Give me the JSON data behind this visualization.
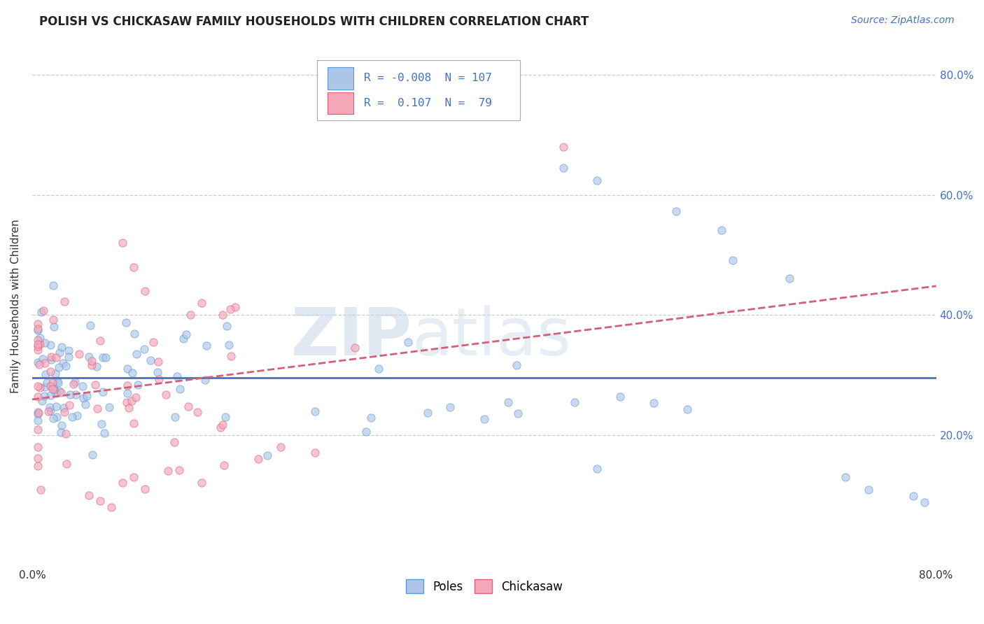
{
  "title": "POLISH VS CHICKASAW FAMILY HOUSEHOLDS WITH CHILDREN CORRELATION CHART",
  "source": "Source: ZipAtlas.com",
  "ylabel": "Family Households with Children",
  "xlim": [
    0.0,
    0.8
  ],
  "ylim": [
    -0.02,
    0.85
  ],
  "ytick_positions": [
    0.2,
    0.4,
    0.6,
    0.8
  ],
  "ytick_labels": [
    "20.0%",
    "40.0%",
    "60.0%",
    "80.0%"
  ],
  "poles_color": "#adc6e8",
  "poles_edge_color": "#5b9bd5",
  "chickasaw_color": "#f4a7b9",
  "chickasaw_edge_color": "#e0607a",
  "trend_poles_color": "#4472c4",
  "trend_chickasaw_color": "#d45f7a",
  "legend_R_poles": "-0.008",
  "legend_N_poles": "107",
  "legend_R_chickasaw": "0.107",
  "legend_N_chickasaw": "79",
  "watermark_zip": "ZIP",
  "watermark_atlas": "atlas",
  "background_color": "#ffffff",
  "grid_color": "#cccccc",
  "title_fontsize": 12,
  "axis_label_fontsize": 11,
  "tick_fontsize": 11,
  "marker_size": 65,
  "marker_alpha": 0.65
}
